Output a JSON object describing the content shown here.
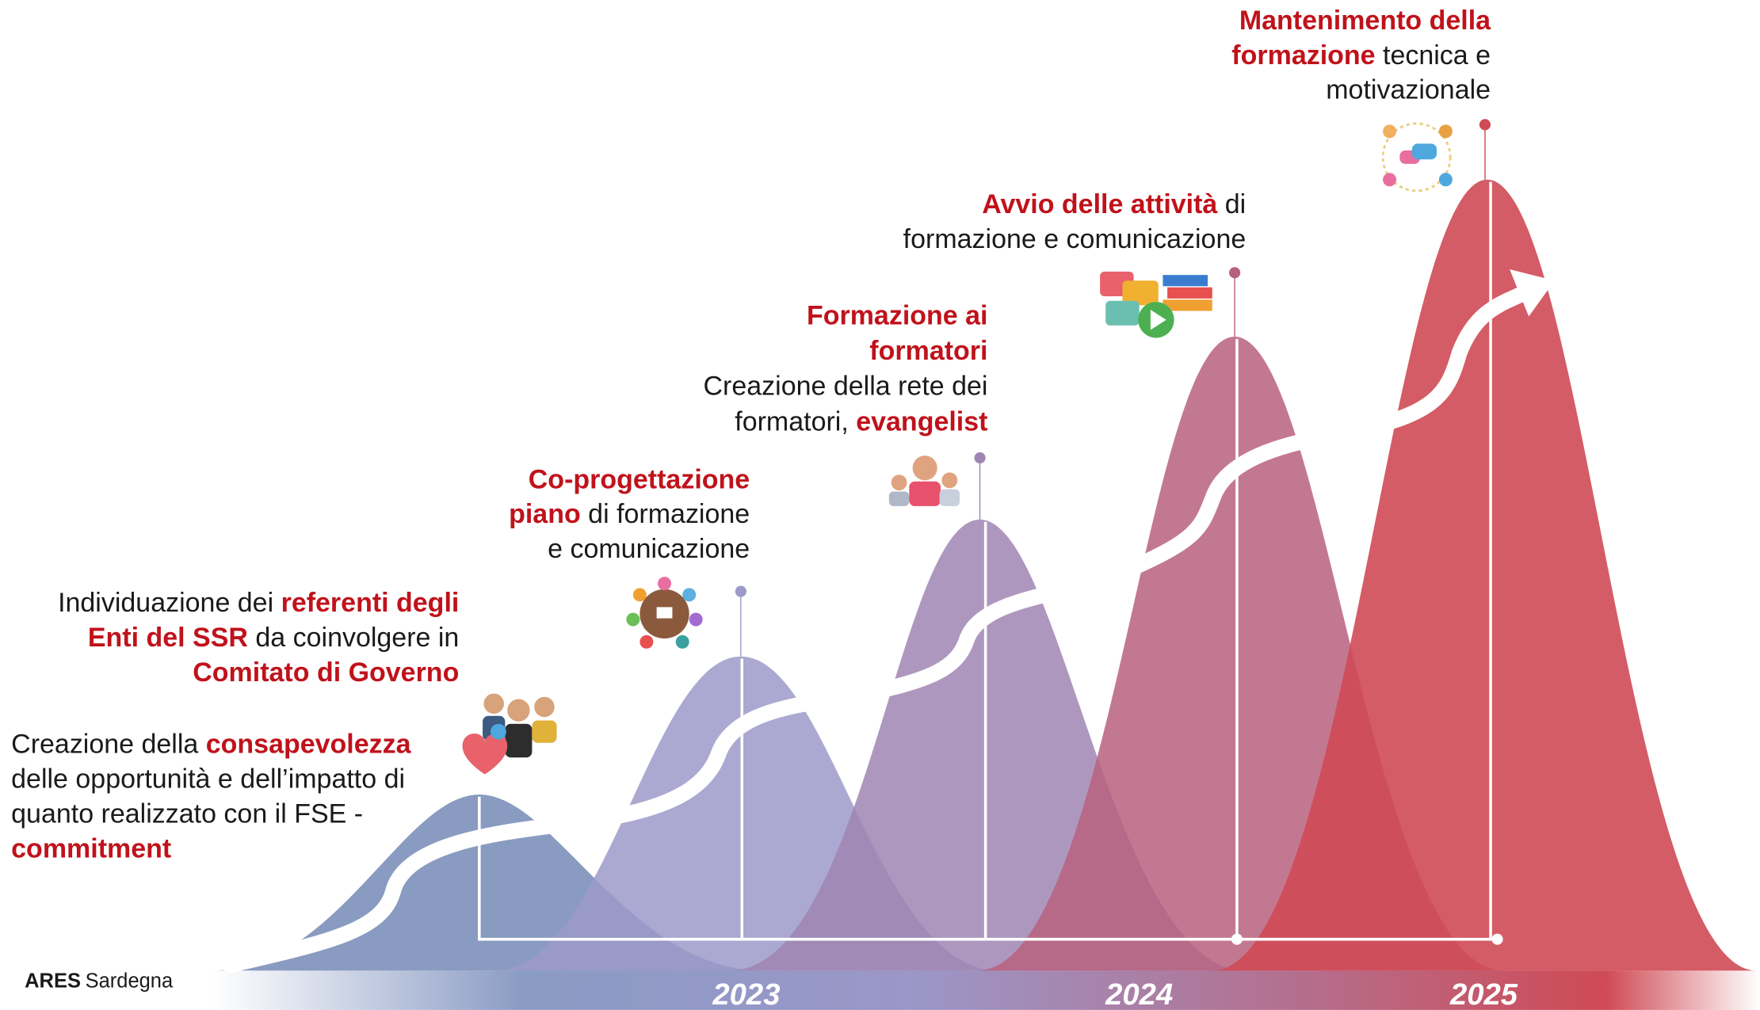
{
  "logo": {
    "brand": "ARES",
    "name": "Sardegna"
  },
  "years": [
    "2023",
    "2024",
    "2025"
  ],
  "steps": [
    {
      "lines": [
        [
          {
            "text": "Creazione della ",
            "strong": false
          },
          {
            "text": "consapevolezza",
            "strong": true
          }
        ],
        [
          {
            "text": "delle opportunità e dell’impatto di",
            "strong": false
          }
        ],
        [
          {
            "text": "quanto realizzato con il FSE -",
            "strong": false
          }
        ],
        [
          {
            "text": "commitment",
            "strong": true
          }
        ]
      ]
    },
    {
      "lines": [
        [
          {
            "text": "Individuazione dei ",
            "strong": false
          },
          {
            "text": "referenti degli",
            "strong": true
          }
        ],
        [
          {
            "text": "Enti del SSR",
            "strong": true
          },
          {
            "text": " da coinvolgere in",
            "strong": false
          }
        ],
        [
          {
            "text": "Comitato di Governo",
            "strong": true
          }
        ]
      ]
    },
    {
      "lines": [
        [
          {
            "text": "Co-progettazione",
            "strong": true
          }
        ],
        [
          {
            "text": "piano",
            "strong": true
          },
          {
            "text": " di formazione",
            "strong": false
          }
        ],
        [
          {
            "text": "e comunicazione",
            "strong": false
          }
        ]
      ]
    },
    {
      "lines": [
        [
          {
            "text": "Formazione ai",
            "strong": true
          }
        ],
        [
          {
            "text": "formatori",
            "strong": true
          }
        ],
        [
          {
            "text": "Creazione della rete dei",
            "strong": false
          }
        ],
        [
          {
            "text": "formatori, ",
            "strong": false
          },
          {
            "text": "evangelist",
            "strong": true
          }
        ]
      ]
    },
    {
      "lines": [
        [
          {
            "text": "Avvio delle attività",
            "strong": true
          },
          {
            "text": " di",
            "strong": false
          }
        ],
        [
          {
            "text": "formazione e comunicazione",
            "strong": false
          }
        ]
      ]
    },
    {
      "lines": [
        [
          {
            "text": "Mantenimento della",
            "strong": true
          }
        ],
        [
          {
            "text": "formazione",
            "strong": true
          },
          {
            "text": " tecnica e",
            "strong": false
          }
        ],
        [
          {
            "text": "motivazionale",
            "strong": false
          }
        ]
      ]
    }
  ]
}
